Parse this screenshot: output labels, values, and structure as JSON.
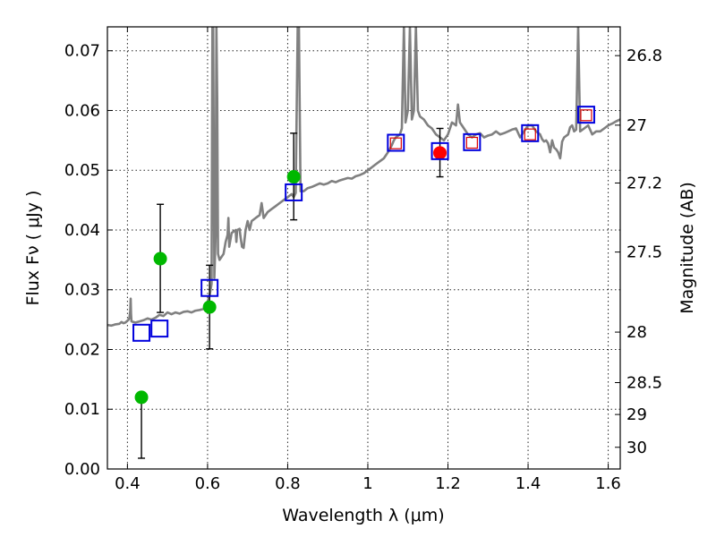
{
  "chart_data": {
    "type": "scatter",
    "xlabel": "Wavelength  λ (μm)",
    "ylabel": "Flux  Fν  ( μJy )",
    "ylabel_right": "Magnitude (AB)",
    "xlim": [
      0.35,
      1.63
    ],
    "ylim": [
      0.0,
      0.074
    ],
    "grid": true,
    "x_ticks": [
      0.4,
      0.6,
      0.8,
      1.0,
      1.2,
      1.4,
      1.6
    ],
    "x_tick_labels": [
      "0.4",
      "0.6",
      "0.8",
      "1",
      "1.2",
      "1.4",
      "1.6"
    ],
    "y_ticks": [
      0.0,
      0.01,
      0.02,
      0.03,
      0.04,
      0.05,
      0.06,
      0.07
    ],
    "y_tick_labels": [
      "0.00",
      "0.01",
      "0.02",
      "0.03",
      "0.04",
      "0.05",
      "0.06",
      "0.07"
    ],
    "right_ticks": [
      {
        "mag": 26.8,
        "label": "26.8"
      },
      {
        "mag": 27.0,
        "label": "27"
      },
      {
        "mag": 27.2,
        "label": "27.2"
      },
      {
        "mag": 27.5,
        "label": "27.5"
      },
      {
        "mag": 28.0,
        "label": "28"
      },
      {
        "mag": 28.5,
        "label": "28.5"
      },
      {
        "mag": 29.0,
        "label": "29"
      },
      {
        "mag": 30.0,
        "label": "30"
      }
    ],
    "series": [
      {
        "kind": "line",
        "color": "#808080",
        "points": [
          [
            0.35,
            0.0241
          ],
          [
            0.36,
            0.024
          ],
          [
            0.37,
            0.0242
          ],
          [
            0.38,
            0.0243
          ],
          [
            0.385,
            0.0246
          ],
          [
            0.39,
            0.0244
          ],
          [
            0.395,
            0.0245
          ],
          [
            0.4,
            0.0248
          ],
          [
            0.403,
            0.025
          ],
          [
            0.405,
            0.0253
          ],
          [
            0.407,
            0.0265
          ],
          [
            0.408,
            0.0285
          ],
          [
            0.409,
            0.026
          ],
          [
            0.41,
            0.0247
          ],
          [
            0.42,
            0.0245
          ],
          [
            0.43,
            0.0247
          ],
          [
            0.44,
            0.0249
          ],
          [
            0.45,
            0.0252
          ],
          [
            0.46,
            0.025
          ],
          [
            0.47,
            0.0253
          ],
          [
            0.48,
            0.0258
          ],
          [
            0.49,
            0.0256
          ],
          [
            0.5,
            0.0262
          ],
          [
            0.51,
            0.0259
          ],
          [
            0.52,
            0.0262
          ],
          [
            0.53,
            0.026
          ],
          [
            0.54,
            0.0263
          ],
          [
            0.55,
            0.0264
          ],
          [
            0.56,
            0.0262
          ],
          [
            0.57,
            0.0265
          ],
          [
            0.58,
            0.0266
          ],
          [
            0.59,
            0.0268
          ],
          [
            0.595,
            0.0276
          ],
          [
            0.6,
            0.028
          ],
          [
            0.605,
            0.029
          ],
          [
            0.61,
            0.031
          ],
          [
            0.612,
            0.074
          ],
          [
            0.614,
            0.074
          ],
          [
            0.617,
            0.032
          ],
          [
            0.62,
            0.039
          ],
          [
            0.622,
            0.074
          ],
          [
            0.624,
            0.062
          ],
          [
            0.626,
            0.036
          ],
          [
            0.63,
            0.035
          ],
          [
            0.64,
            0.036
          ],
          [
            0.645,
            0.038
          ],
          [
            0.65,
            0.0392
          ],
          [
            0.652,
            0.042
          ],
          [
            0.654,
            0.0372
          ],
          [
            0.66,
            0.0395
          ],
          [
            0.67,
            0.04
          ],
          [
            0.672,
            0.038
          ],
          [
            0.674,
            0.04
          ],
          [
            0.68,
            0.0402
          ],
          [
            0.682,
            0.039
          ],
          [
            0.686,
            0.0372
          ],
          [
            0.69,
            0.037
          ],
          [
            0.695,
            0.04
          ],
          [
            0.7,
            0.0415
          ],
          [
            0.705,
            0.04
          ],
          [
            0.71,
            0.0415
          ],
          [
            0.72,
            0.042
          ],
          [
            0.73,
            0.0425
          ],
          [
            0.735,
            0.0445
          ],
          [
            0.74,
            0.042
          ],
          [
            0.75,
            0.043
          ],
          [
            0.76,
            0.0435
          ],
          [
            0.77,
            0.044
          ],
          [
            0.78,
            0.0445
          ],
          [
            0.79,
            0.045
          ],
          [
            0.8,
            0.0455
          ],
          [
            0.81,
            0.046
          ],
          [
            0.815,
            0.0455
          ],
          [
            0.82,
            0.0462
          ],
          [
            0.825,
            0.074
          ],
          [
            0.828,
            0.074
          ],
          [
            0.832,
            0.0465
          ],
          [
            0.84,
            0.0465
          ],
          [
            0.85,
            0.047
          ],
          [
            0.86,
            0.0472
          ],
          [
            0.87,
            0.0475
          ],
          [
            0.88,
            0.0478
          ],
          [
            0.89,
            0.0476
          ],
          [
            0.9,
            0.0478
          ],
          [
            0.91,
            0.0482
          ],
          [
            0.92,
            0.048
          ],
          [
            0.93,
            0.0483
          ],
          [
            0.94,
            0.0485
          ],
          [
            0.95,
            0.0487
          ],
          [
            0.96,
            0.0486
          ],
          [
            0.97,
            0.049
          ],
          [
            0.98,
            0.0492
          ],
          [
            0.99,
            0.0495
          ],
          [
            1.0,
            0.05
          ],
          [
            1.01,
            0.0505
          ],
          [
            1.02,
            0.051
          ],
          [
            1.03,
            0.0515
          ],
          [
            1.04,
            0.052
          ],
          [
            1.05,
            0.053
          ],
          [
            1.06,
            0.0542
          ],
          [
            1.065,
            0.055
          ],
          [
            1.07,
            0.0555
          ],
          [
            1.08,
            0.056
          ],
          [
            1.085,
            0.057
          ],
          [
            1.09,
            0.074
          ],
          [
            1.094,
            0.058
          ],
          [
            1.1,
            0.06
          ],
          [
            1.105,
            0.074
          ],
          [
            1.11,
            0.0585
          ],
          [
            1.115,
            0.06
          ],
          [
            1.12,
            0.074
          ],
          [
            1.125,
            0.06
          ],
          [
            1.13,
            0.059
          ],
          [
            1.14,
            0.0585
          ],
          [
            1.15,
            0.0575
          ],
          [
            1.16,
            0.057
          ],
          [
            1.17,
            0.056
          ],
          [
            1.18,
            0.0555
          ],
          [
            1.19,
            0.055
          ],
          [
            1.2,
            0.056
          ],
          [
            1.21,
            0.058
          ],
          [
            1.22,
            0.0575
          ],
          [
            1.225,
            0.061
          ],
          [
            1.23,
            0.058
          ],
          [
            1.24,
            0.057
          ],
          [
            1.25,
            0.056
          ],
          [
            1.26,
            0.0555
          ],
          [
            1.27,
            0.056
          ],
          [
            1.28,
            0.0562
          ],
          [
            1.29,
            0.0555
          ],
          [
            1.3,
            0.0558
          ],
          [
            1.31,
            0.056
          ],
          [
            1.32,
            0.0565
          ],
          [
            1.33,
            0.056
          ],
          [
            1.34,
            0.0562
          ],
          [
            1.35,
            0.0565
          ],
          [
            1.36,
            0.0568
          ],
          [
            1.37,
            0.057
          ],
          [
            1.38,
            0.0555
          ],
          [
            1.39,
            0.0565
          ],
          [
            1.4,
            0.0575
          ],
          [
            1.41,
            0.0575
          ],
          [
            1.42,
            0.0565
          ],
          [
            1.43,
            0.056
          ],
          [
            1.435,
            0.0552
          ],
          [
            1.44,
            0.0548
          ],
          [
            1.445,
            0.055
          ],
          [
            1.45,
            0.0545
          ],
          [
            1.455,
            0.053
          ],
          [
            1.46,
            0.055
          ],
          [
            1.465,
            0.0538
          ],
          [
            1.47,
            0.0535
          ],
          [
            1.475,
            0.053
          ],
          [
            1.48,
            0.052
          ],
          [
            1.485,
            0.0548
          ],
          [
            1.49,
            0.0555
          ],
          [
            1.5,
            0.056
          ],
          [
            1.505,
            0.0572
          ],
          [
            1.51,
            0.0575
          ],
          [
            1.515,
            0.0565
          ],
          [
            1.52,
            0.0568
          ],
          [
            1.525,
            0.074
          ],
          [
            1.53,
            0.0565
          ],
          [
            1.54,
            0.057
          ],
          [
            1.55,
            0.0575
          ],
          [
            1.56,
            0.056
          ],
          [
            1.57,
            0.0565
          ],
          [
            1.58,
            0.0565
          ],
          [
            1.59,
            0.057
          ],
          [
            1.6,
            0.0575
          ],
          [
            1.61,
            0.0578
          ],
          [
            1.62,
            0.0582
          ],
          [
            1.63,
            0.0585
          ]
        ]
      },
      {
        "kind": "errorbar-points",
        "color": "#00b800",
        "points": [
          {
            "x": 0.435,
            "y": 0.012,
            "ylow": 0.0018,
            "yhigh": null
          },
          {
            "x": 0.482,
            "y": 0.0352,
            "ylow": 0.0262,
            "yhigh": 0.0443
          },
          {
            "x": 0.605,
            "y": 0.0271,
            "ylow": 0.0201,
            "yhigh": 0.0341
          },
          {
            "x": 0.815,
            "y": 0.0489,
            "ylow": 0.0417,
            "yhigh": 0.0562
          }
        ]
      },
      {
        "kind": "errorbar-points",
        "color": "#ff0000",
        "points": [
          {
            "x": 1.18,
            "y": 0.0529,
            "ylow": 0.0489,
            "yhigh": 0.057
          }
        ]
      },
      {
        "kind": "squares",
        "color": "#0000dd",
        "points": [
          [
            0.435,
            0.0228
          ],
          [
            0.48,
            0.0235
          ],
          [
            0.605,
            0.0303
          ],
          [
            0.815,
            0.0463
          ],
          [
            1.07,
            0.0546
          ],
          [
            1.18,
            0.0532
          ],
          [
            1.26,
            0.0547
          ],
          [
            1.405,
            0.0562
          ],
          [
            1.545,
            0.0593
          ]
        ]
      },
      {
        "kind": "small-squares",
        "color": "#dd0000",
        "points": [
          [
            1.07,
            0.0545
          ],
          [
            1.26,
            0.0546
          ],
          [
            1.405,
            0.056
          ],
          [
            1.545,
            0.0592
          ]
        ]
      }
    ]
  }
}
